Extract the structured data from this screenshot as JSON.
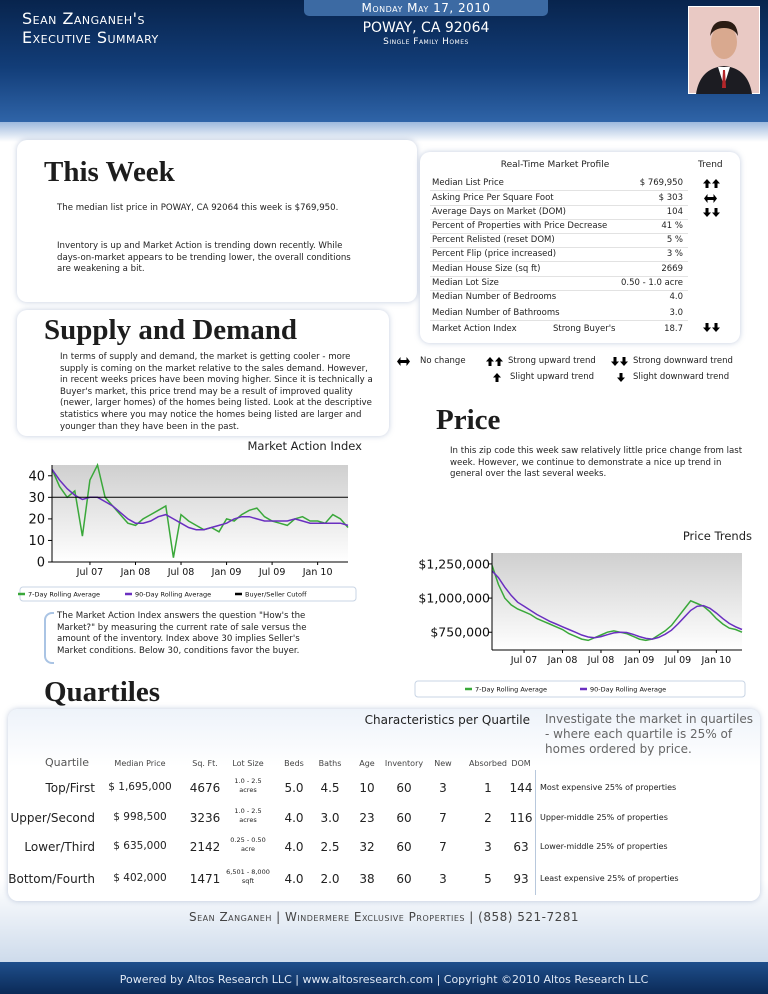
{
  "header": {
    "name_line1": "Sean Zanganeh's",
    "name_line2": "Executive Summary",
    "date": "Monday May 17, 2010",
    "location": "POWAY, CA 92064",
    "property_type": "Single Family Homes"
  },
  "this_week": {
    "title": "This Week",
    "paragraphs": [
      "The median list price in POWAY, CA 92064 this week is $769,950.",
      "Inventory is up and Market Action is trending down recently. While days-on-market appears to be trending lower, the overall conditions are weakening a bit."
    ]
  },
  "market_profile": {
    "title": "Real-Time Market Profile",
    "trend_header": "Trend",
    "rows": [
      {
        "label": "Median List Price",
        "value": "$ 769,950"
      },
      {
        "label": "Asking Price Per Square Foot",
        "value": "$ 303"
      },
      {
        "label": "Average Days on Market (DOM)",
        "value": "104"
      },
      {
        "label": "Percent of Properties with Price Decrease",
        "value": "41 %"
      },
      {
        "label": "Percent Relisted (reset DOM)",
        "value": "5 %"
      },
      {
        "label": "Percent Flip (price increased)",
        "value": "3 %"
      },
      {
        "label": "Median House Size (sq ft)",
        "value": "2669"
      },
      {
        "label": "Median Lot Size",
        "value": "0.50 - 1.0 acre"
      },
      {
        "label": "Median Number of Bedrooms",
        "value": "4.0"
      },
      {
        "label": "Median Number of Bathrooms",
        "value": "3.0"
      },
      {
        "label": "Market Action Index",
        "note": "Strong Buyer's",
        "value": "18.7"
      }
    ]
  },
  "trend_legend": [
    "No change",
    "Strong upward trend",
    "Strong downward trend",
    "Slight upward trend",
    "Slight downward trend"
  ],
  "supply_demand": {
    "title": "Supply and Demand",
    "paragraph": "In terms of supply and demand, the market is getting cooler - more supply is coming on the market relative to the sales demand. However, in recent weeks prices have been moving higher. Since it is technically a Buyer's market, this price trend may be a result of improved quality (newer, larger homes) of the homes being listed. Look at the descriptive statistics where you may notice the homes being listed are larger and younger than they have been in the past."
  },
  "mai_note": "The Market Action Index answers the question \"How's the Market?\" by measuring the current rate of sale versus the amount of the inventory.  Index above 30 implies Seller's Market conditions. Below 30, conditions favor the buyer.",
  "price": {
    "title": "Price",
    "paragraph": "In this zip code this week saw relatively little price change from last week. However, we continue to demonstrate a nice up trend in general over the last several weeks."
  },
  "quartiles": {
    "title": "Quartiles",
    "chart_title": "Characteristics per Quartile",
    "intro": "Investigate the market in quartiles - where each quartile is 25% of homes ordered by price.",
    "columns": [
      "Quartile",
      "Median Price",
      "Sq. Ft.",
      "Lot Size",
      "Beds",
      "Baths",
      "Age",
      "Inventory",
      "New",
      "Absorbed",
      "DOM"
    ],
    "rows": [
      [
        "Top/First",
        "$ 1,695,000",
        "4676",
        "1.0 - 2.5 acres",
        "5.0",
        "4.5",
        "10",
        "60",
        "3",
        "1",
        "144",
        "Most expensive 25% of properties"
      ],
      [
        "Upper/Second",
        "$ 998,500",
        "3236",
        "1.0 - 2.5 acres",
        "4.0",
        "3.0",
        "23",
        "60",
        "7",
        "2",
        "116",
        "Upper-middle 25% of properties"
      ],
      [
        "Lower/Third",
        "$ 635,000",
        "2142",
        "0.25 - 0.50 acre",
        "4.0",
        "2.5",
        "32",
        "60",
        "7",
        "3",
        "63",
        "Lower-middle 25% of properties"
      ],
      [
        "Bottom/Fourth",
        "$ 402,000",
        "1471",
        "6,501 - 8,000 sqft",
        "4.0",
        "2.0",
        "38",
        "60",
        "3",
        "5",
        "93",
        "Least expensive 25% of properties"
      ]
    ]
  },
  "footer": {
    "contact": "Sean Zanganeh | Windermere Exclusive Properties | (858) 521-7281",
    "powered": "Powered by Altos Research LLC | www.altosresearch.com | Copyright ©2010 Altos Research LLC"
  },
  "chart_data": [
    {
      "type": "line",
      "title": "Market Action Index",
      "x": [
        "2007-02",
        "2007-03",
        "2007-04",
        "2007-05",
        "2007-06",
        "2007-07",
        "2007-08",
        "2007-09",
        "2007-10",
        "2007-11",
        "2007-12",
        "2008-01",
        "2008-02",
        "2008-03",
        "2008-04",
        "2008-05",
        "2008-06",
        "2008-07",
        "2008-08",
        "2008-09",
        "2008-10",
        "2008-11",
        "2008-12",
        "2009-01",
        "2009-02",
        "2009-03",
        "2009-04",
        "2009-05",
        "2009-06",
        "2009-07",
        "2009-08",
        "2009-09",
        "2009-10",
        "2009-11",
        "2009-12",
        "2010-01",
        "2010-02",
        "2010-03",
        "2010-04",
        "2010-05"
      ],
      "xlim": [
        "2007-02",
        "2010-05"
      ],
      "xticks": [
        {
          "value": "2007-07",
          "label": "Jul 07"
        },
        {
          "value": "2008-01",
          "label": "Jan 08"
        },
        {
          "value": "2008-07",
          "label": "Jul 08"
        },
        {
          "value": "2009-01",
          "label": "Jan 09"
        },
        {
          "value": "2009-07",
          "label": "Jul 09"
        },
        {
          "value": "2010-01",
          "label": "Jan 10"
        }
      ],
      "ylim": [
        0,
        45
      ],
      "yticks": [
        0,
        10,
        20,
        30,
        40
      ],
      "grid": false,
      "series": [
        {
          "name": "7-Day Rolling Average",
          "color": "#3aa83a",
          "values": [
            43,
            35,
            30,
            33,
            12,
            38,
            45,
            30,
            26,
            22,
            18,
            17,
            20,
            22,
            24,
            26,
            2,
            22,
            19,
            17,
            15,
            16,
            14,
            20,
            19,
            22,
            24,
            25,
            21,
            19,
            18,
            17,
            20,
            21,
            19,
            19,
            18,
            22,
            20,
            16
          ]
        },
        {
          "name": "90-Day Rolling Average",
          "color": "#6a2fc0",
          "values": [
            43,
            38,
            34,
            31,
            29,
            30,
            30,
            28,
            26,
            23,
            20,
            18,
            18,
            19,
            21,
            22,
            20,
            18,
            16,
            15,
            15,
            16,
            17,
            18,
            20,
            21,
            21,
            20,
            19,
            19,
            19,
            19,
            20,
            19,
            18,
            18,
            18,
            18,
            18,
            17
          ]
        },
        {
          "name": "Buyer/Seller Cutoff",
          "color": "#000000",
          "values": [
            30,
            30,
            30,
            30,
            30,
            30,
            30,
            30,
            30,
            30,
            30,
            30,
            30,
            30,
            30,
            30,
            30,
            30,
            30,
            30,
            30,
            30,
            30,
            30,
            30,
            30,
            30,
            30,
            30,
            30,
            30,
            30,
            30,
            30,
            30,
            30,
            30,
            30,
            30,
            30
          ]
        }
      ]
    },
    {
      "type": "line",
      "title": "Price Trends",
      "x": [
        "2007-02",
        "2007-03",
        "2007-04",
        "2007-05",
        "2007-06",
        "2007-07",
        "2007-08",
        "2007-09",
        "2007-10",
        "2007-11",
        "2007-12",
        "2008-01",
        "2008-02",
        "2008-03",
        "2008-04",
        "2008-05",
        "2008-06",
        "2008-07",
        "2008-08",
        "2008-09",
        "2008-10",
        "2008-11",
        "2008-12",
        "2009-01",
        "2009-02",
        "2009-03",
        "2009-04",
        "2009-05",
        "2009-06",
        "2009-07",
        "2009-08",
        "2009-09",
        "2009-10",
        "2009-11",
        "2009-12",
        "2010-01",
        "2010-02",
        "2010-03",
        "2010-04",
        "2010-05"
      ],
      "xlim": [
        "2007-02",
        "2010-05"
      ],
      "xticks": [
        {
          "value": "2007-07",
          "label": "Jul 07"
        },
        {
          "value": "2008-01",
          "label": "Jan 08"
        },
        {
          "value": "2008-07",
          "label": "Jul 08"
        },
        {
          "value": "2009-01",
          "label": "Jan 09"
        },
        {
          "value": "2009-07",
          "label": "Jul 09"
        },
        {
          "value": "2010-01",
          "label": "Jan 10"
        }
      ],
      "ylim": [
        620000,
        1330000
      ],
      "yticks": [
        {
          "value": 750000,
          "label": "$750,000"
        },
        {
          "value": 1000000,
          "label": "$1,000,000"
        },
        {
          "value": 1250000,
          "label": "$1,250,000"
        }
      ],
      "grid": false,
      "series": [
        {
          "name": "7-Day Rolling Average",
          "color": "#3aa83a",
          "values": [
            1240000,
            1100000,
            1000000,
            950000,
            920000,
            900000,
            880000,
            850000,
            830000,
            810000,
            790000,
            770000,
            740000,
            720000,
            700000,
            690000,
            710000,
            730000,
            750000,
            760000,
            750000,
            740000,
            720000,
            700000,
            690000,
            700000,
            730000,
            760000,
            800000,
            860000,
            920000,
            980000,
            960000,
            940000,
            900000,
            850000,
            810000,
            780000,
            770000,
            750000
          ]
        },
        {
          "name": "90-Day Rolling Average",
          "color": "#6a2fc0",
          "values": [
            1200000,
            1150000,
            1080000,
            1020000,
            970000,
            940000,
            910000,
            880000,
            855000,
            830000,
            810000,
            790000,
            770000,
            750000,
            730000,
            715000,
            710000,
            718000,
            732000,
            745000,
            750000,
            748000,
            735000,
            718000,
            705000,
            700000,
            712000,
            735000,
            765000,
            810000,
            860000,
            910000,
            940000,
            945000,
            925000,
            890000,
            850000,
            815000,
            790000,
            770000
          ]
        }
      ]
    }
  ]
}
